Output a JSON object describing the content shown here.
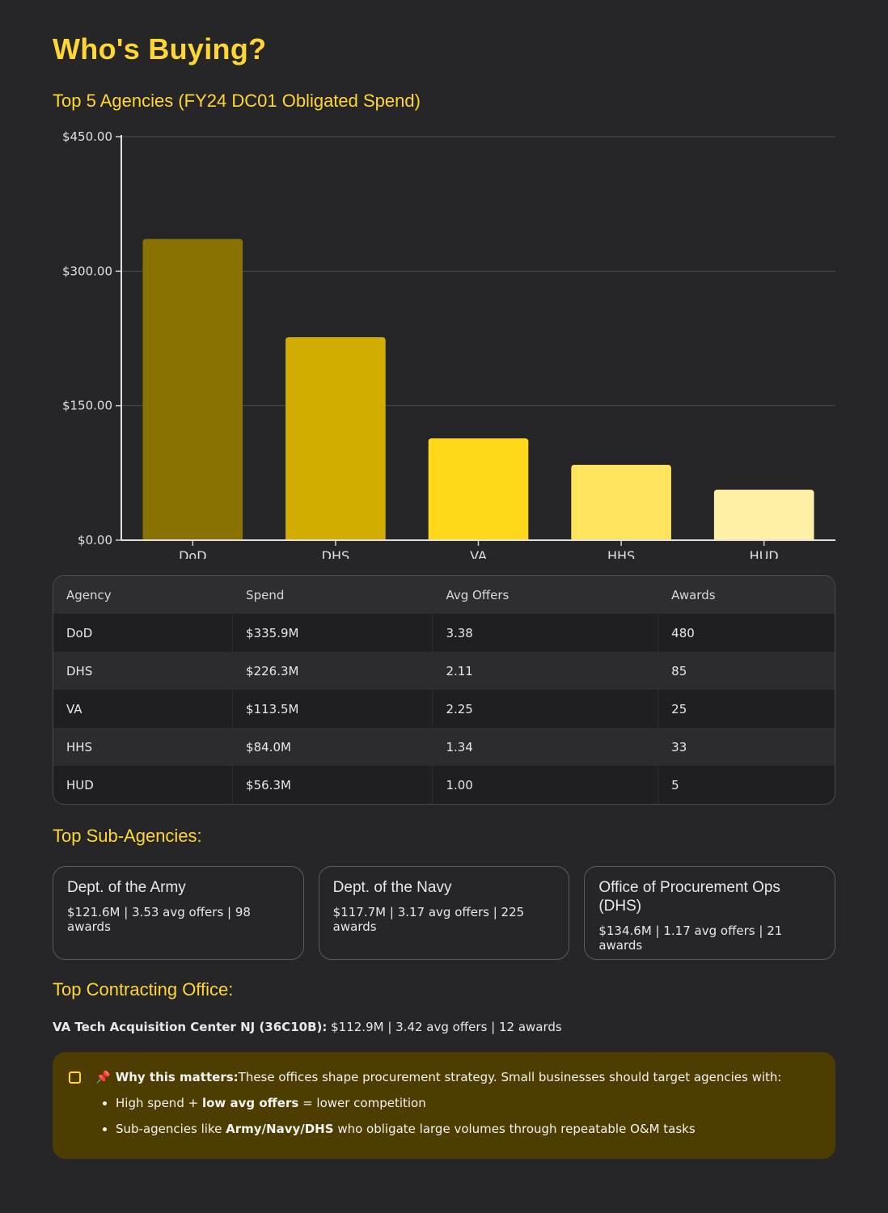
{
  "title": "Who's Buying?",
  "chart_subtitle": "Top 5 Agencies (FY24 DC01 Obligated Spend)",
  "chart_data": {
    "type": "bar",
    "categories": [
      "DoD",
      "DHS",
      "VA",
      "HHS",
      "HUD"
    ],
    "values": [
      335.9,
      226.3,
      113.5,
      84.0,
      56.3
    ],
    "colors": [
      "#8a7200",
      "#d1ad00",
      "#ffd81a",
      "#ffe35c",
      "#fff0a6"
    ],
    "ylim": [
      0,
      450
    ],
    "yticks": [
      0,
      150,
      300,
      450
    ],
    "ytick_labels": [
      "$0.00",
      "$150.00",
      "$300.00",
      "$450.00"
    ],
    "grid": true
  },
  "table": {
    "headers": [
      "Agency",
      "Spend",
      "Avg Offers",
      "Awards"
    ],
    "rows": [
      [
        "DoD",
        "$335.9M",
        "3.38",
        "480"
      ],
      [
        "DHS",
        "$226.3M",
        "2.11",
        "85"
      ],
      [
        "VA",
        "$113.5M",
        "2.25",
        "25"
      ],
      [
        "HHS",
        "$84.0M",
        "1.34",
        "33"
      ],
      [
        "HUD",
        "$56.3M",
        "1.00",
        "5"
      ]
    ]
  },
  "sub_agencies": {
    "heading": "Top Sub-Agencies:",
    "cards": [
      {
        "name": "Dept. of the Army",
        "details": "$121.6M | 3.53 avg offers | 98 awards"
      },
      {
        "name": "Dept. of the Navy",
        "details": "$117.7M | 3.17 avg offers | 225 awards"
      },
      {
        "name": "Office of Procurement Ops (DHS)",
        "details": "$134.6M | 1.17 avg offers | 21 awards"
      }
    ]
  },
  "office": {
    "heading": "Top Contracting Office:",
    "name": "VA Tech Acquisition Center NJ (36C10B):",
    "details": " $112.9M | 3.42 avg offers | 12 awards"
  },
  "callout": {
    "icon": "note-icon",
    "pin": "📌",
    "lead": "Why this matters:",
    "text": " These offices shape procurement strategy. Small businesses should target agencies with:",
    "item1_pre": "High spend + ",
    "item1_bold": "low avg offers",
    "item1_post": " = lower competition",
    "item2_pre": "Sub-agencies like ",
    "item2_bold": "Army/Navy/DHS",
    "item2_post": " who obligate large volumes through repeatable O&M tasks"
  }
}
